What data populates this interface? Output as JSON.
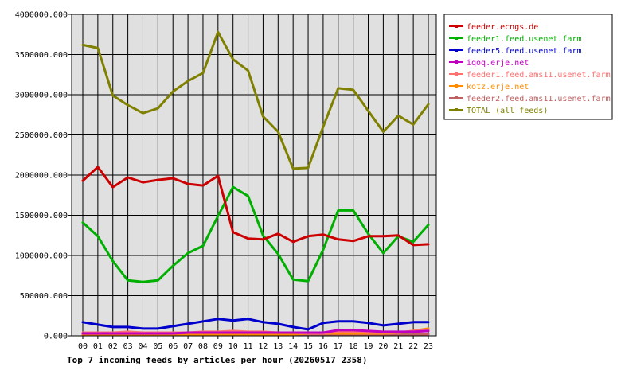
{
  "chart_data": {
    "type": "line",
    "title": "Top 7 incoming feeds by articles per hour (20260517 2358)",
    "xlabel": "",
    "ylabel": "",
    "ylim": [
      0,
      4000000
    ],
    "yticks": [
      0,
      500000,
      1000000,
      1500000,
      2000000,
      2500000,
      3000000,
      3500000,
      4000000
    ],
    "ytick_labels": [
      "0.000",
      "500000.000",
      "1000000.000",
      "1500000.000",
      "2000000.000",
      "2500000.000",
      "3000000.000",
      "3500000.000",
      "4000000.000"
    ],
    "categories": [
      "00",
      "01",
      "02",
      "03",
      "04",
      "05",
      "06",
      "07",
      "08",
      "09",
      "10",
      "11",
      "12",
      "13",
      "14",
      "15",
      "16",
      "17",
      "18",
      "19",
      "20",
      "21",
      "22",
      "23"
    ],
    "grid": true,
    "legend_position": "right",
    "plot_background": "#e0e0e0",
    "series": [
      {
        "name": "feeder.ecngs.de",
        "color": "#cc0000",
        "values": [
          1930000,
          2100000,
          1850000,
          1970000,
          1910000,
          1940000,
          1960000,
          1890000,
          1870000,
          1990000,
          1290000,
          1210000,
          1200000,
          1270000,
          1170000,
          1240000,
          1260000,
          1200000,
          1180000,
          1240000,
          1240000,
          1250000,
          1130000,
          1140000
        ]
      },
      {
        "name": "feeder1.feed.usenet.farm",
        "color": "#00b000",
        "values": [
          1410000,
          1240000,
          930000,
          690000,
          670000,
          690000,
          870000,
          1030000,
          1120000,
          1490000,
          1850000,
          1740000,
          1250000,
          1020000,
          700000,
          680000,
          1070000,
          1560000,
          1560000,
          1270000,
          1030000,
          1240000,
          1170000,
          1380000
        ]
      },
      {
        "name": "feeder5.feed.usenet.farm",
        "color": "#0000cc",
        "values": [
          170000,
          140000,
          110000,
          110000,
          90000,
          90000,
          120000,
          150000,
          180000,
          210000,
          190000,
          210000,
          170000,
          150000,
          110000,
          80000,
          160000,
          180000,
          180000,
          160000,
          130000,
          150000,
          170000,
          170000
        ]
      },
      {
        "name": "iqoq.erje.net",
        "color": "#c000c0",
        "values": [
          30000,
          30000,
          30000,
          30000,
          30000,
          30000,
          30000,
          40000,
          40000,
          40000,
          40000,
          40000,
          40000,
          40000,
          40000,
          40000,
          40000,
          70000,
          70000,
          60000,
          50000,
          50000,
          50000,
          60000
        ]
      },
      {
        "name": "feeder1.feed.ams11.usenet.farm",
        "color": "#ff7070",
        "values": [
          40000,
          40000,
          40000,
          50000,
          40000,
          40000,
          40000,
          40000,
          50000,
          50000,
          60000,
          50000,
          50000,
          40000,
          40000,
          30000,
          30000,
          50000,
          50000,
          40000,
          40000,
          40000,
          60000,
          70000
        ]
      },
      {
        "name": "kotz.erje.net",
        "color": "#ff8c00",
        "values": [
          10000,
          10000,
          10000,
          10000,
          10000,
          10000,
          10000,
          10000,
          10000,
          10000,
          10000,
          10000,
          20000,
          20000,
          20000,
          30000,
          30000,
          30000,
          30000,
          30000,
          30000,
          40000,
          60000,
          90000
        ]
      },
      {
        "name": "feeder2.feed.ams11.usenet.farm",
        "color": "#c06060",
        "values": [
          20000,
          20000,
          20000,
          20000,
          20000,
          20000,
          20000,
          20000,
          20000,
          20000,
          20000,
          20000,
          20000,
          20000,
          20000,
          20000,
          20000,
          20000,
          20000,
          20000,
          20000,
          20000,
          20000,
          20000
        ]
      },
      {
        "name": "TOTAL (all feeds)",
        "color": "#808000",
        "values": [
          3620000,
          3580000,
          2990000,
          2870000,
          2770000,
          2830000,
          3040000,
          3170000,
          3270000,
          3780000,
          3440000,
          3300000,
          2730000,
          2540000,
          2080000,
          2090000,
          2600000,
          3080000,
          3060000,
          2800000,
          2540000,
          2740000,
          2630000,
          2880000
        ]
      }
    ]
  }
}
